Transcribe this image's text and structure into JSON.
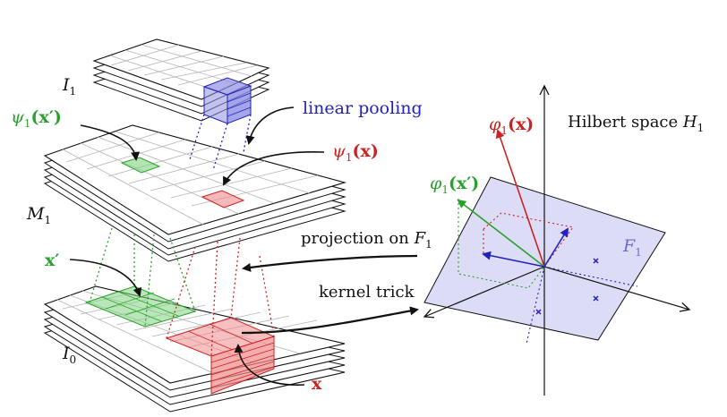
{
  "labels": {
    "i1": "I",
    "i1_sub": "1",
    "m1": "M",
    "m1_sub": "1",
    "i0": "I",
    "i0_sub": "0",
    "psi_prime_fn": "ψ",
    "psi_prime_sub": "1",
    "psi_prime_arg": "(x′)",
    "psi_fn": "ψ",
    "psi_sub": "1",
    "psi_arg": "(x)",
    "x_prime": "x′",
    "x": "x",
    "linear_pooling": "linear pooling",
    "projection": "projection on",
    "projection_space": "F",
    "projection_space_sub": "1",
    "kernel_trick": "kernel trick",
    "hilbert": "Hilbert space",
    "hilbert_symbol": "H",
    "hilbert_sub": "1",
    "phi_fn": "φ",
    "phi_sub": "1",
    "phi_arg": "(x)",
    "phi_prime_fn": "φ",
    "phi_prime_sub": "1",
    "phi_prime_arg": "(x′)",
    "f1_plane": "F",
    "f1_plane_sub": "1"
  },
  "colors": {
    "green": "#2aa12a",
    "red": "#cc2222",
    "blue": "#2222bb",
    "plane": "#dcdcf6",
    "grid": "#b4b4b4"
  }
}
